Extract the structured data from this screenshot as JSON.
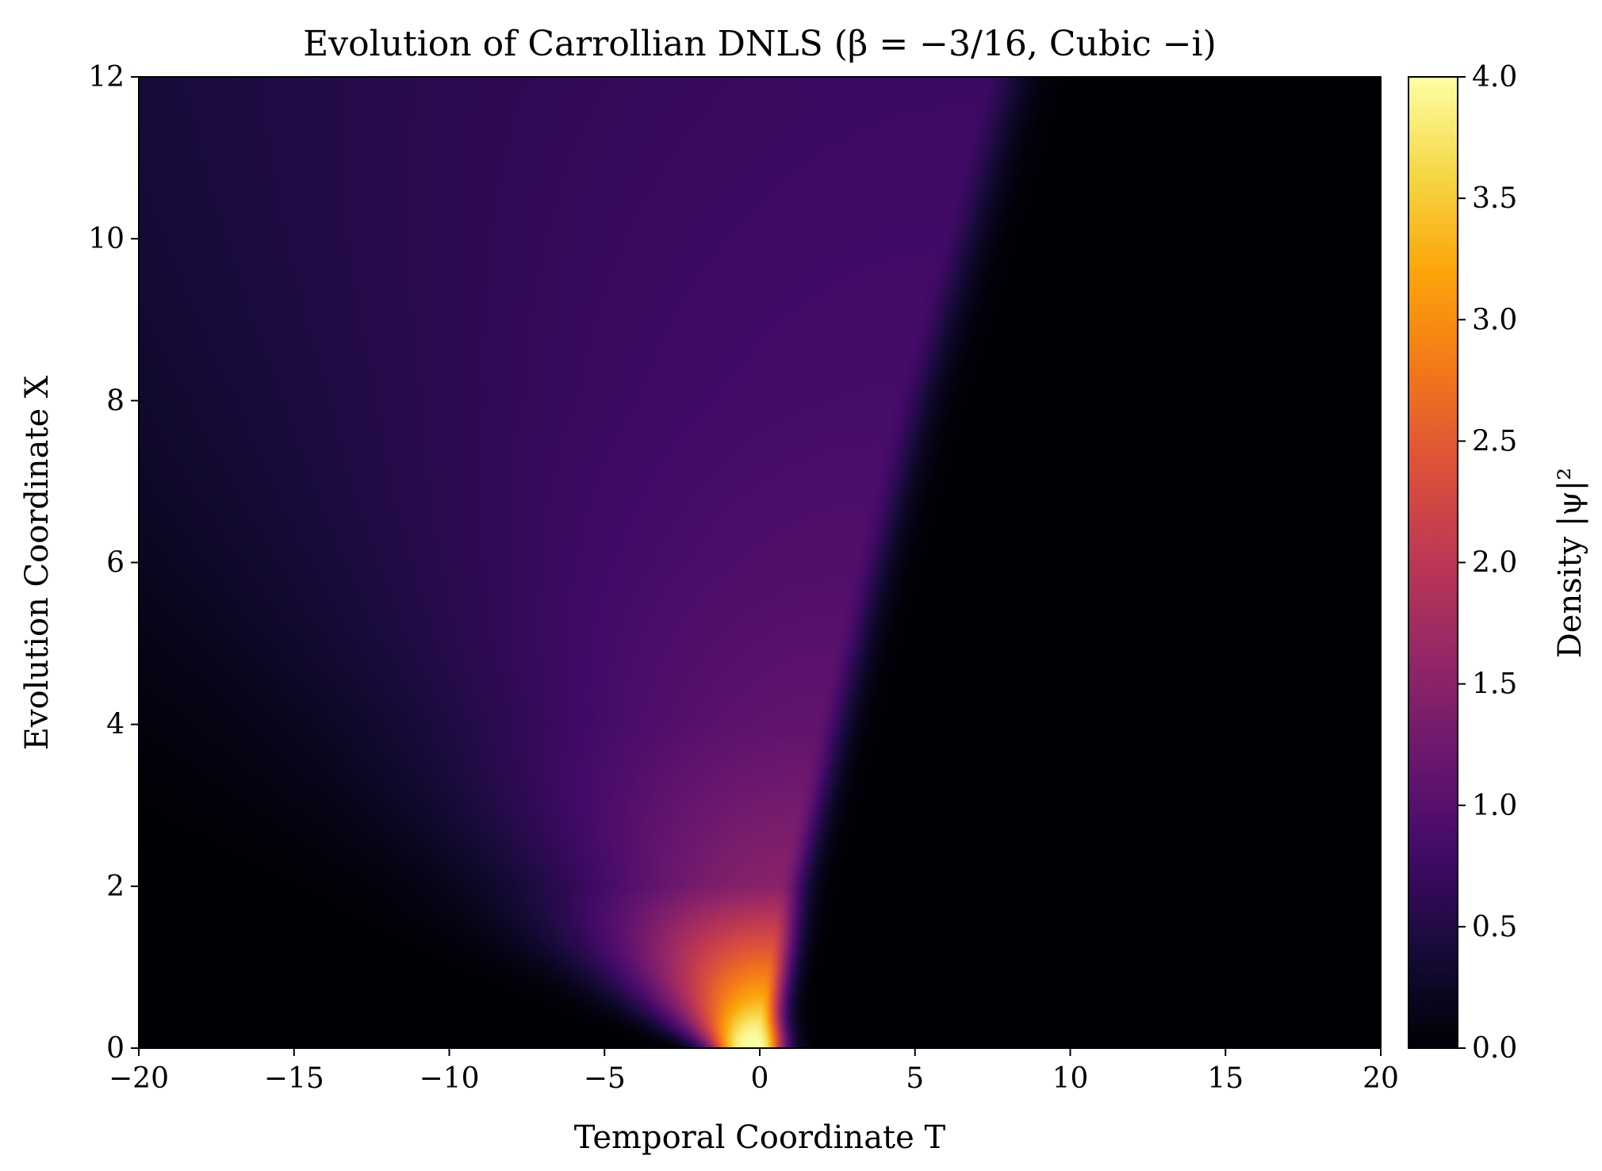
{
  "chart_data": {
    "type": "heatmap",
    "title": "Evolution of Carrollian DNLS (β = −3/16, Cubic −i)",
    "xlabel": "Temporal Coordinate T",
    "ylabel": "Evolution Coordinate X",
    "colorbar_label": "Density |ψ|²",
    "colormap": "inferno",
    "xlim": [
      -20,
      20
    ],
    "ylim": [
      0,
      12
    ],
    "clim": [
      0.0,
      4.0
    ],
    "x_ticks": [
      "−20",
      "−15",
      "−10",
      "−5",
      "0",
      "5",
      "10",
      "15",
      "20"
    ],
    "y_ticks": [
      "0",
      "2",
      "4",
      "6",
      "8",
      "10",
      "12"
    ],
    "colorbar_ticks": [
      "0.0",
      "0.5",
      "1.0",
      "1.5",
      "2.0",
      "2.5",
      "3.0",
      "3.5",
      "4.0"
    ],
    "density_ridge": {
      "peak": {
        "T": -0.2,
        "X": 0.0,
        "density": 4.0
      },
      "center_path": [
        {
          "X": 0,
          "T": -0.2
        },
        {
          "X": 2,
          "T": 0.6
        },
        {
          "X": 4,
          "T": 1.8
        },
        {
          "X": 6,
          "T": 3.0
        },
        {
          "X": 8,
          "T": 4.3
        },
        {
          "X": 10,
          "T": 5.8
        },
        {
          "X": 12,
          "T": 7.2
        }
      ],
      "density_along_path": [
        4.0,
        1.5,
        1.1,
        0.95,
        0.85,
        0.8,
        0.75
      ]
    }
  }
}
